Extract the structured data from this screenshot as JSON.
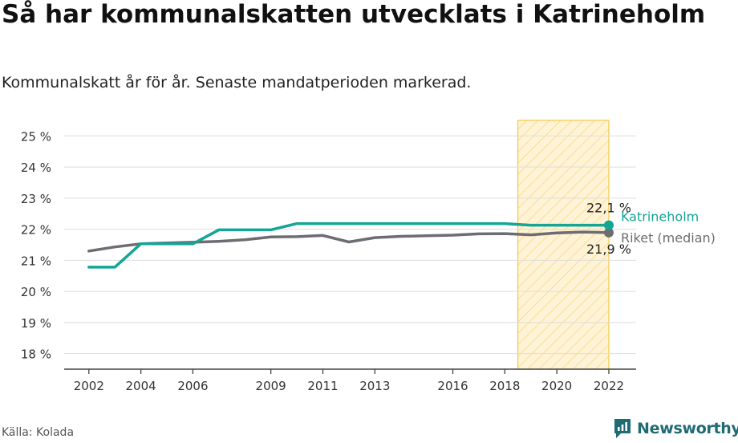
{
  "header": {
    "title": "Så har kommunalskatten utvecklats i Katrineholm",
    "subtitle": "Kommunalskatt år för år. Senaste mandatperioden markerad."
  },
  "footer": {
    "source": "Källa: Kolada",
    "brand": "Newsworthy"
  },
  "colors": {
    "katrineholm": "#13a596",
    "riket": "#6e6c72",
    "highlight_fill": "#fde9b5",
    "highlight_border": "#f5c842",
    "grid": "#dddddd",
    "text": "#222222"
  },
  "chart_data": {
    "type": "line",
    "title": "Så har kommunalskatten utvecklats i Katrineholm",
    "subtitle": "Kommunalskatt år för år. Senaste mandatperioden markerad.",
    "x": [
      2002,
      2003,
      2004,
      2005,
      2006,
      2007,
      2008,
      2009,
      2010,
      2011,
      2012,
      2013,
      2014,
      2015,
      2016,
      2017,
      2018,
      2019,
      2020,
      2021,
      2022
    ],
    "x_ticks": [
      2002,
      2004,
      2006,
      2009,
      2011,
      2013,
      2016,
      2018,
      2020,
      2022
    ],
    "xlim": [
      2001.05,
      2023.05
    ],
    "y_ticks": [
      18,
      19,
      20,
      21,
      22,
      23,
      24,
      25
    ],
    "y_tick_labels": [
      "18 %",
      "19 %",
      "20 %",
      "21 %",
      "22 %",
      "23 %",
      "24 %",
      "25 %"
    ],
    "ylim": [
      17.5,
      25.5
    ],
    "grid": true,
    "highlight": {
      "from": 2018.5,
      "to": 2022
    },
    "series": [
      {
        "name": "Katrineholm",
        "color": "#13a596",
        "values": [
          20.78,
          20.78,
          21.53,
          21.53,
          21.53,
          21.98,
          21.98,
          21.98,
          22.18,
          22.18,
          22.18,
          22.18,
          22.18,
          22.18,
          22.18,
          22.18,
          22.18,
          22.13,
          22.13,
          22.13,
          22.13
        ],
        "end_label": "22,1 %"
      },
      {
        "name": "Riket (median)",
        "color": "#6e6c72",
        "values": [
          21.3,
          21.43,
          21.53,
          21.56,
          21.58,
          21.61,
          21.66,
          21.75,
          21.76,
          21.8,
          21.59,
          21.73,
          21.77,
          21.79,
          21.81,
          21.85,
          21.86,
          21.82,
          21.88,
          21.91,
          21.89
        ],
        "end_label": "21,9 %"
      }
    ]
  }
}
